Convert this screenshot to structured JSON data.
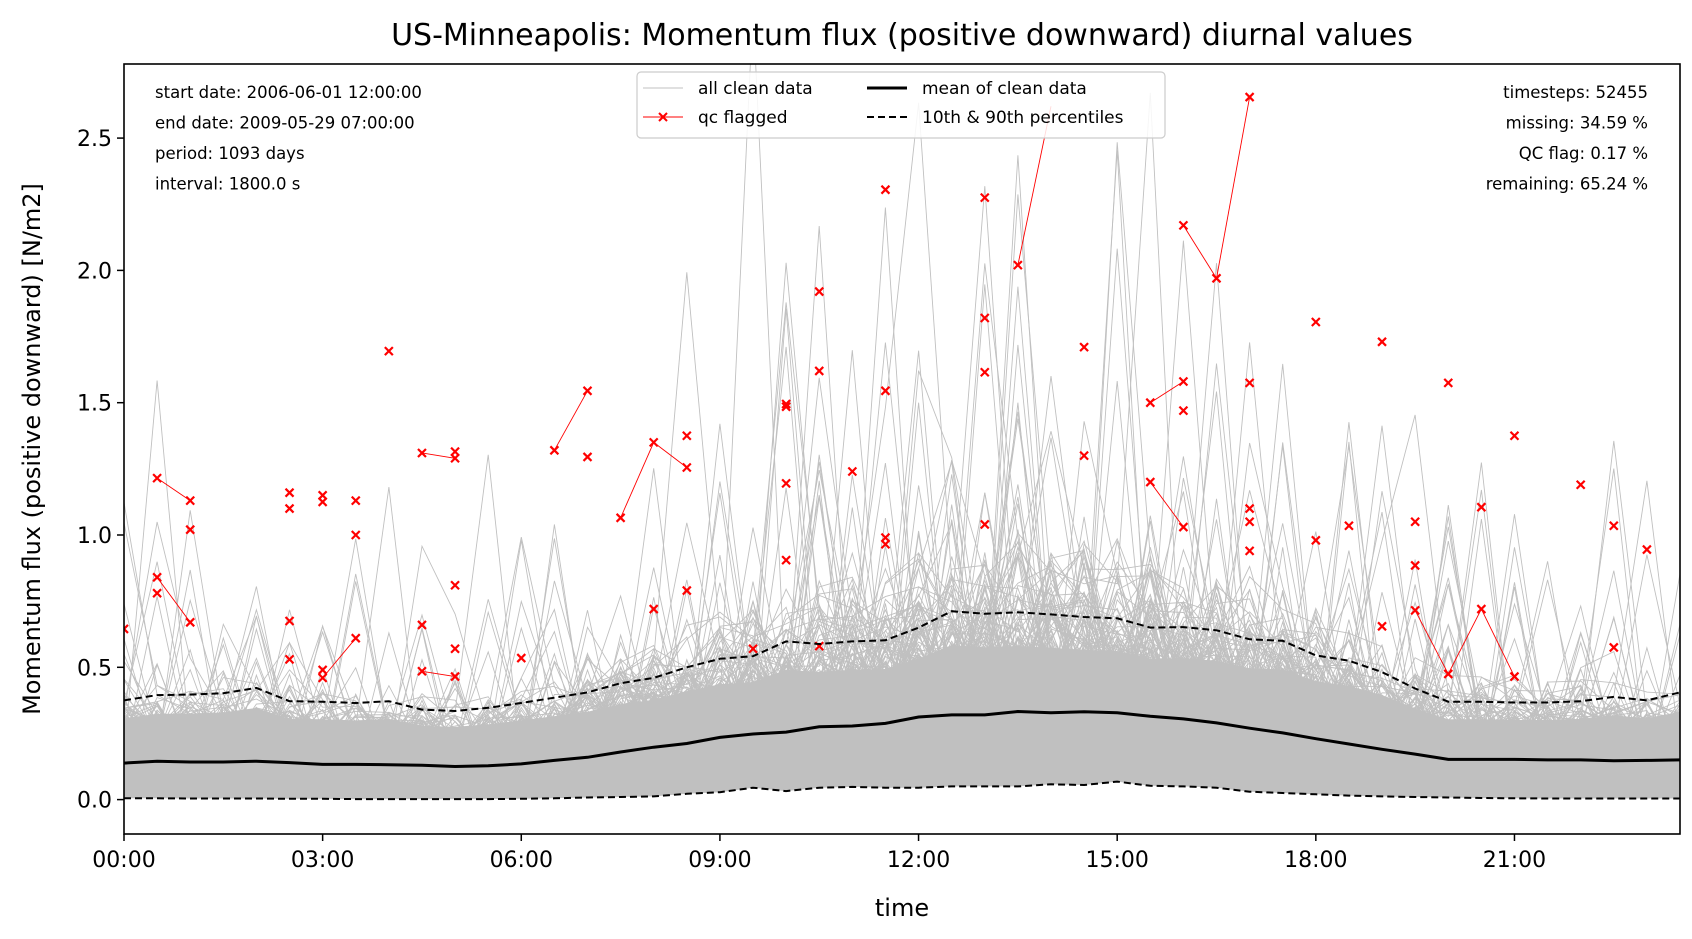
{
  "chart_data": {
    "type": "line",
    "title": "US-Minneapolis: Momentum flux (positive downward) diurnal values",
    "xlabel": "time",
    "ylabel": "Momentum flux (positive downward) [N/m2]",
    "xlim": [
      0,
      23.5
    ],
    "ylim": [
      -0.13,
      2.78
    ],
    "x_ticks": [
      {
        "value": 0,
        "label": "00:00"
      },
      {
        "value": 3,
        "label": "03:00"
      },
      {
        "value": 6,
        "label": "06:00"
      },
      {
        "value": 9,
        "label": "09:00"
      },
      {
        "value": 12,
        "label": "12:00"
      },
      {
        "value": 15,
        "label": "15:00"
      },
      {
        "value": 18,
        "label": "18:00"
      },
      {
        "value": 21,
        "label": "21:00"
      }
    ],
    "y_ticks": [
      {
        "value": 0.0,
        "label": "0.0"
      },
      {
        "value": 0.5,
        "label": "0.5"
      },
      {
        "value": 1.0,
        "label": "1.0"
      },
      {
        "value": 1.5,
        "label": "1.5"
      },
      {
        "value": 2.0,
        "label": "2.0"
      },
      {
        "value": 2.5,
        "label": "2.5"
      }
    ],
    "grid": false,
    "legend": {
      "placement": "top-center",
      "entries": [
        {
          "label": "all clean data",
          "style": "thin-gray-line"
        },
        {
          "label": "qc flagged",
          "style": "red-x-line"
        },
        {
          "label": "mean of clean data",
          "style": "thick-black-line"
        },
        {
          "label": "10th & 90th percentiles",
          "style": "dashed-black-line"
        }
      ]
    },
    "info_left": [
      "start date: 2006-06-01 12:00:00",
      "end date: 2009-05-29 07:00:00",
      "period: 1093 days",
      "interval: 1800.0 s"
    ],
    "info_right": [
      "timesteps: 52455",
      "missing: 34.59 %",
      "QC flag: 0.17 %",
      "remaining: 65.24 %"
    ],
    "x": [
      0,
      0.5,
      1,
      1.5,
      2,
      2.5,
      3,
      3.5,
      4,
      4.5,
      5,
      5.5,
      6,
      6.5,
      7,
      7.5,
      8,
      8.5,
      9,
      9.5,
      10,
      10.5,
      11,
      11.5,
      12,
      12.5,
      13,
      13.5,
      14,
      14.5,
      15,
      15.5,
      16,
      16.5,
      17,
      17.5,
      18,
      18.5,
      19,
      19.5,
      20,
      20.5,
      21,
      21.5,
      22,
      22.5,
      23,
      23.5
    ],
    "series": [
      {
        "name": "mean of clean data",
        "color": "#000000",
        "values": [
          0.138,
          0.145,
          0.142,
          0.142,
          0.145,
          0.14,
          0.133,
          0.133,
          0.132,
          0.13,
          0.125,
          0.128,
          0.135,
          0.148,
          0.16,
          0.18,
          0.198,
          0.212,
          0.235,
          0.248,
          0.255,
          0.275,
          0.278,
          0.288,
          0.312,
          0.32,
          0.32,
          0.333,
          0.328,
          0.332,
          0.328,
          0.315,
          0.305,
          0.29,
          0.27,
          0.252,
          0.23,
          0.21,
          0.19,
          0.172,
          0.152,
          0.152,
          0.152,
          0.15,
          0.15,
          0.147,
          0.148,
          0.15
        ]
      },
      {
        "name": "10th & 90th percentiles",
        "color": "#000000",
        "values": [
          0.375,
          0.395,
          0.397,
          0.402,
          0.422,
          0.372,
          0.37,
          0.365,
          0.372,
          0.34,
          0.335,
          0.347,
          0.365,
          0.385,
          0.405,
          0.44,
          0.46,
          0.5,
          0.532,
          0.542,
          0.598,
          0.588,
          0.598,
          0.602,
          0.65,
          0.712,
          0.702,
          0.708,
          0.7,
          0.69,
          0.685,
          0.65,
          0.652,
          0.64,
          0.606,
          0.6,
          0.545,
          0.525,
          0.482,
          0.42,
          0.37,
          0.37,
          0.367,
          0.367,
          0.372,
          0.388,
          0.375,
          0.405
        ]
      },
      {
        "name": "10th & 90th percentiles",
        "color": "#000000",
        "values": [
          0.005,
          0.005,
          0.004,
          0.004,
          0.004,
          0.003,
          0.003,
          0.002,
          0.002,
          0.002,
          0.002,
          0.002,
          0.003,
          0.005,
          0.008,
          0.01,
          0.012,
          0.022,
          0.028,
          0.045,
          0.032,
          0.045,
          0.048,
          0.045,
          0.045,
          0.05,
          0.05,
          0.05,
          0.058,
          0.055,
          0.068,
          0.052,
          0.05,
          0.045,
          0.03,
          0.025,
          0.02,
          0.015,
          0.012,
          0.01,
          0.008,
          0.006,
          0.005,
          0.004,
          0.004,
          0.004,
          0.004,
          0.004
        ]
      }
    ],
    "qc_flagged_points": [
      [
        0,
        0.645
      ],
      [
        0.5,
        1.215
      ],
      [
        0.5,
        0.84
      ],
      [
        0.5,
        0.78
      ],
      [
        1,
        1.13
      ],
      [
        1,
        1.02
      ],
      [
        1,
        0.67
      ],
      [
        2.5,
        1.16
      ],
      [
        2.5,
        1.1
      ],
      [
        2.5,
        0.675
      ],
      [
        2.5,
        0.53
      ],
      [
        3,
        1.15
      ],
      [
        3,
        1.125
      ],
      [
        3,
        0.49
      ],
      [
        3,
        0.46
      ],
      [
        3.5,
        1.13
      ],
      [
        3.5,
        1.0
      ],
      [
        3.5,
        0.61
      ],
      [
        4,
        1.695
      ],
      [
        4.5,
        1.31
      ],
      [
        4.5,
        0.66
      ],
      [
        4.5,
        0.485
      ],
      [
        5,
        1.315
      ],
      [
        5,
        1.29
      ],
      [
        5,
        0.81
      ],
      [
        5,
        0.57
      ],
      [
        5,
        0.465
      ],
      [
        6,
        0.535
      ],
      [
        6.5,
        1.32
      ],
      [
        7,
        1.545
      ],
      [
        7,
        1.295
      ],
      [
        7.5,
        1.065
      ],
      [
        8,
        1.35
      ],
      [
        8,
        0.72
      ],
      [
        8.5,
        1.375
      ],
      [
        8.5,
        1.255
      ],
      [
        8.5,
        0.79
      ],
      [
        9.5,
        0.57
      ],
      [
        10,
        1.495
      ],
      [
        10,
        1.485
      ],
      [
        10,
        1.195
      ],
      [
        10,
        0.905
      ],
      [
        10.5,
        1.92
      ],
      [
        10.5,
        1.62
      ],
      [
        10.5,
        0.58
      ],
      [
        11,
        1.24
      ],
      [
        11.5,
        2.305
      ],
      [
        11.5,
        1.545
      ],
      [
        11.5,
        0.99
      ],
      [
        11.5,
        0.965
      ],
      [
        13,
        2.275
      ],
      [
        13,
        1.82
      ],
      [
        13,
        1.615
      ],
      [
        13,
        1.04
      ],
      [
        13.5,
        2.02
      ],
      [
        14.5,
        1.71
      ],
      [
        14.5,
        1.3
      ],
      [
        15.5,
        1.5
      ],
      [
        15.5,
        1.2
      ],
      [
        16,
        2.17
      ],
      [
        16,
        1.58
      ],
      [
        16,
        1.47
      ],
      [
        16,
        1.03
      ],
      [
        16.5,
        1.97
      ],
      [
        17,
        2.655
      ],
      [
        17,
        1.575
      ],
      [
        17,
        1.1
      ],
      [
        17,
        1.05
      ],
      [
        17,
        0.94
      ],
      [
        18,
        1.805
      ],
      [
        18,
        0.98
      ],
      [
        18.5,
        1.035
      ],
      [
        19,
        1.73
      ],
      [
        19,
        0.655
      ],
      [
        19.5,
        1.05
      ],
      [
        19.5,
        0.885
      ],
      [
        19.5,
        0.715
      ],
      [
        20,
        1.575
      ],
      [
        20,
        0.475
      ],
      [
        20.5,
        1.105
      ],
      [
        20.5,
        0.72
      ],
      [
        21,
        1.375
      ],
      [
        21,
        0.465
      ],
      [
        22,
        1.19
      ],
      [
        22.5,
        1.035
      ],
      [
        22.5,
        0.575
      ],
      [
        23,
        0.945
      ]
    ],
    "qc_flagged_links": [
      [
        [
          0.5,
          1.215
        ],
        [
          1,
          1.13
        ]
      ],
      [
        [
          0.5,
          0.84
        ],
        [
          1,
          0.67
        ]
      ],
      [
        [
          3,
          0.46
        ],
        [
          3.5,
          0.61
        ]
      ],
      [
        [
          4.5,
          1.31
        ],
        [
          5,
          1.29
        ]
      ],
      [
        [
          4.5,
          0.485
        ],
        [
          5,
          0.465
        ]
      ],
      [
        [
          6.5,
          1.32
        ],
        [
          7,
          1.545
        ]
      ],
      [
        [
          7.5,
          1.065
        ],
        [
          8,
          1.35
        ]
      ],
      [
        [
          8,
          1.35
        ],
        [
          8.5,
          1.255
        ]
      ],
      [
        [
          13.5,
          2.02
        ],
        [
          14,
          2.62
        ]
      ],
      [
        [
          15.5,
          1.5
        ],
        [
          16,
          1.58
        ]
      ],
      [
        [
          15.5,
          1.2
        ],
        [
          16,
          1.03
        ]
      ],
      [
        [
          16,
          2.17
        ],
        [
          16.5,
          1.97
        ]
      ],
      [
        [
          16.5,
          1.97
        ],
        [
          17,
          2.655
        ]
      ],
      [
        [
          19.5,
          0.715
        ],
        [
          20,
          0.475
        ]
      ],
      [
        [
          20,
          0.475
        ],
        [
          20.5,
          0.72
        ]
      ],
      [
        [
          20.5,
          0.72
        ],
        [
          21,
          0.465
        ]
      ]
    ]
  }
}
